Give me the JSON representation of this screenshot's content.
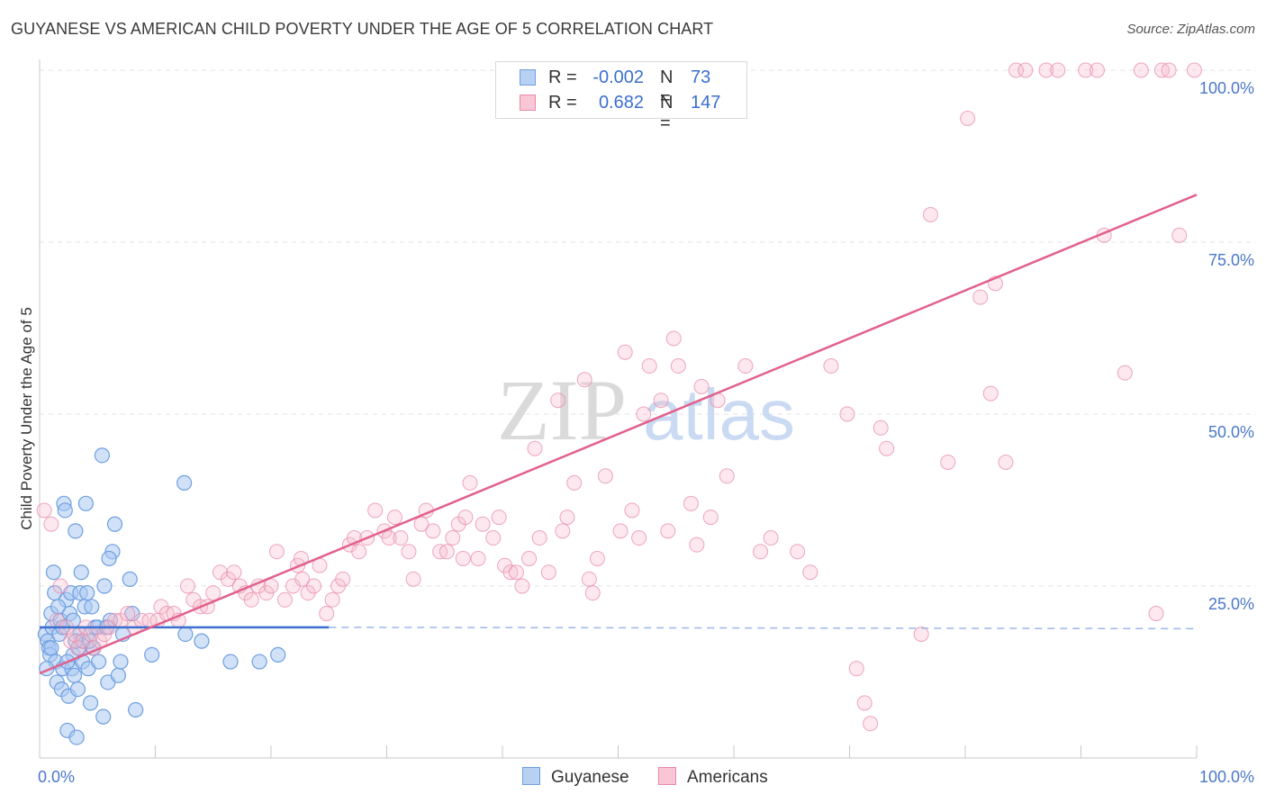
{
  "title": "GUYANESE VS AMERICAN CHILD POVERTY UNDER THE AGE OF 5 CORRELATION CHART",
  "source": "Source: ZipAtlas.com",
  "watermark": {
    "zip": "ZIP",
    "atlas": "atlas"
  },
  "colors": {
    "blue": "#6f9fe0",
    "blue_fill": "#a9c8f2",
    "blue_line": "#3d6fcf",
    "pink": "#e88aa8",
    "pink_fill": "#f6bccd",
    "pink_line": "#e2608d",
    "grid": "#e3e3e3",
    "axis_text": "#4a78c8"
  },
  "legend": {
    "rows": [
      {
        "r_label": "R =",
        "r_value": "-0.002",
        "n_label": "N =",
        "n_value": "73"
      },
      {
        "r_label": "R =",
        "r_value": "0.682",
        "n_label": "N =",
        "n_value": "147"
      }
    ]
  },
  "bottom_legend": {
    "guyanese": "Guyanese",
    "americans": "Americans"
  },
  "chart_data": {
    "type": "scatter",
    "title": "GUYANESE VS AMERICAN CHILD POVERTY UNDER THE AGE OF 5 CORRELATION CHART",
    "xlabel": "",
    "ylabel": "Child Poverty Under the Age of 5",
    "xlim": [
      0,
      100
    ],
    "ylim": [
      0,
      100
    ],
    "x_tick_labels": [
      "0.0%",
      "100.0%"
    ],
    "y_ticks": [
      25,
      50,
      75,
      100
    ],
    "y_tick_labels": [
      "25.0%",
      "50.0%",
      "75.0%",
      "100.0%"
    ],
    "series": [
      {
        "name": "Guyanese",
        "r": -0.002,
        "n": 73,
        "trend": {
          "solid": [
            [
              0,
              19.0
            ],
            [
              25,
              19.0
            ]
          ],
          "dashed": [
            [
              25,
              19.0
            ],
            [
              100,
              18.8
            ]
          ]
        },
        "points": [
          [
            0.5,
            18
          ],
          [
            0.7,
            17
          ],
          [
            0.8,
            16
          ],
          [
            0.9,
            15
          ],
          [
            1.0,
            21
          ],
          [
            1.1,
            19
          ],
          [
            1.2,
            27
          ],
          [
            1.3,
            24
          ],
          [
            1.4,
            14
          ],
          [
            1.5,
            11
          ],
          [
            1.7,
            18
          ],
          [
            1.8,
            20
          ],
          [
            1.9,
            10
          ],
          [
            2.0,
            13
          ],
          [
            2.1,
            37
          ],
          [
            2.2,
            36
          ],
          [
            2.3,
            23
          ],
          [
            2.4,
            4
          ],
          [
            2.5,
            9
          ],
          [
            2.6,
            21
          ],
          [
            2.7,
            24
          ],
          [
            2.8,
            13
          ],
          [
            2.9,
            15
          ],
          [
            3.0,
            12
          ],
          [
            3.1,
            33
          ],
          [
            3.2,
            3
          ],
          [
            3.3,
            10
          ],
          [
            3.4,
            16
          ],
          [
            3.5,
            24
          ],
          [
            3.6,
            27
          ],
          [
            3.7,
            14
          ],
          [
            3.8,
            17
          ],
          [
            3.9,
            22
          ],
          [
            4.0,
            37
          ],
          [
            4.1,
            24
          ],
          [
            4.2,
            13
          ],
          [
            4.4,
            8
          ],
          [
            4.6,
            16
          ],
          [
            4.8,
            19
          ],
          [
            5.1,
            14
          ],
          [
            5.4,
            44
          ],
          [
            5.5,
            6
          ],
          [
            5.6,
            25
          ],
          [
            5.9,
            11
          ],
          [
            6.1,
            20
          ],
          [
            6.3,
            30
          ],
          [
            6.5,
            34
          ],
          [
            6.8,
            12
          ],
          [
            7.0,
            14
          ],
          [
            7.8,
            26
          ],
          [
            8.0,
            21
          ],
          [
            8.3,
            7
          ],
          [
            9.7,
            15
          ],
          [
            12.5,
            40
          ],
          [
            12.6,
            18
          ],
          [
            14.0,
            17
          ],
          [
            16.5,
            14
          ],
          [
            19.0,
            14
          ],
          [
            20.6,
            15
          ],
          [
            0.6,
            13
          ],
          [
            1.6,
            22
          ],
          [
            2.0,
            19
          ],
          [
            2.9,
            20
          ],
          [
            3.5,
            18
          ],
          [
            4.3,
            17
          ],
          [
            5.0,
            19
          ],
          [
            6.0,
            29
          ],
          [
            7.2,
            18
          ],
          [
            1.0,
            16
          ],
          [
            2.4,
            14
          ],
          [
            3.1,
            17
          ],
          [
            4.5,
            22
          ],
          [
            5.8,
            19
          ]
        ]
      },
      {
        "name": "Americans",
        "r": 0.682,
        "n": 147,
        "trend": {
          "solid": [
            [
              0,
              12.3
            ],
            [
              100,
              81.9
            ]
          ]
        },
        "points": [
          [
            0.4,
            36
          ],
          [
            1.0,
            34
          ],
          [
            1.5,
            20
          ],
          [
            1.8,
            25
          ],
          [
            2.3,
            19
          ],
          [
            2.7,
            17
          ],
          [
            3.0,
            18
          ],
          [
            3.3,
            16
          ],
          [
            3.7,
            17
          ],
          [
            4.0,
            19
          ],
          [
            4.4,
            18
          ],
          [
            4.7,
            16
          ],
          [
            5.2,
            17
          ],
          [
            5.6,
            18
          ],
          [
            6.0,
            19
          ],
          [
            6.5,
            20
          ],
          [
            7.0,
            20
          ],
          [
            7.6,
            21
          ],
          [
            8.2,
            19
          ],
          [
            8.8,
            20
          ],
          [
            9.5,
            20
          ],
          [
            10.2,
            20
          ],
          [
            10.5,
            22
          ],
          [
            11.0,
            21
          ],
          [
            11.6,
            21
          ],
          [
            12.0,
            20
          ],
          [
            12.8,
            25
          ],
          [
            13.3,
            23
          ],
          [
            13.9,
            22
          ],
          [
            14.5,
            22
          ],
          [
            15.0,
            24
          ],
          [
            15.6,
            27
          ],
          [
            16.3,
            26
          ],
          [
            16.8,
            27
          ],
          [
            17.3,
            25
          ],
          [
            17.8,
            24
          ],
          [
            18.3,
            23
          ],
          [
            18.9,
            25
          ],
          [
            19.6,
            24
          ],
          [
            20.0,
            25
          ],
          [
            20.5,
            30
          ],
          [
            21.2,
            23
          ],
          [
            21.9,
            25
          ],
          [
            22.3,
            28
          ],
          [
            22.7,
            26
          ],
          [
            23.2,
            24
          ],
          [
            23.7,
            25
          ],
          [
            24.2,
            28
          ],
          [
            24.8,
            21
          ],
          [
            25.3,
            23
          ],
          [
            25.8,
            25
          ],
          [
            26.2,
            26
          ],
          [
            26.8,
            31
          ],
          [
            27.2,
            32
          ],
          [
            27.6,
            30
          ],
          [
            28.3,
            32
          ],
          [
            29.0,
            36
          ],
          [
            29.8,
            33
          ],
          [
            30.2,
            32
          ],
          [
            30.7,
            35
          ],
          [
            31.2,
            32
          ],
          [
            31.9,
            30
          ],
          [
            32.3,
            26
          ],
          [
            33.0,
            34
          ],
          [
            33.4,
            36
          ],
          [
            34.0,
            33
          ],
          [
            34.6,
            30
          ],
          [
            35.2,
            30
          ],
          [
            35.7,
            32
          ],
          [
            36.2,
            34
          ],
          [
            36.8,
            35
          ],
          [
            37.2,
            40
          ],
          [
            37.9,
            29
          ],
          [
            38.3,
            34
          ],
          [
            39.2,
            32
          ],
          [
            39.7,
            35
          ],
          [
            40.2,
            28
          ],
          [
            40.7,
            27
          ],
          [
            41.2,
            27
          ],
          [
            41.7,
            25
          ],
          [
            42.3,
            29
          ],
          [
            42.8,
            45
          ],
          [
            43.2,
            32
          ],
          [
            44.0,
            27
          ],
          [
            44.8,
            52
          ],
          [
            45.2,
            33
          ],
          [
            45.6,
            35
          ],
          [
            46.2,
            40
          ],
          [
            47.1,
            55
          ],
          [
            47.5,
            26
          ],
          [
            48.2,
            29
          ],
          [
            48.9,
            41
          ],
          [
            50.2,
            33
          ],
          [
            50.6,
            59
          ],
          [
            51.2,
            36
          ],
          [
            51.8,
            32
          ],
          [
            52.2,
            50
          ],
          [
            52.7,
            57
          ],
          [
            53.7,
            52
          ],
          [
            54.3,
            33
          ],
          [
            54.8,
            61
          ],
          [
            55.2,
            57
          ],
          [
            56.3,
            37
          ],
          [
            56.8,
            31
          ],
          [
            57.2,
            54
          ],
          [
            58.0,
            35
          ],
          [
            58.6,
            52
          ],
          [
            59.4,
            41
          ],
          [
            61.0,
            57
          ],
          [
            62.3,
            30
          ],
          [
            63.2,
            32
          ],
          [
            65.5,
            30
          ],
          [
            66.6,
            27
          ],
          [
            68.4,
            57
          ],
          [
            69.8,
            50
          ],
          [
            70.6,
            13
          ],
          [
            71.3,
            8
          ],
          [
            71.8,
            5
          ],
          [
            72.7,
            48
          ],
          [
            73.2,
            45
          ],
          [
            76.2,
            18
          ],
          [
            77.0,
            79
          ],
          [
            78.5,
            43
          ],
          [
            80.2,
            93
          ],
          [
            81.3,
            67
          ],
          [
            82.2,
            53
          ],
          [
            82.6,
            69
          ],
          [
            83.5,
            43
          ],
          [
            84.4,
            100
          ],
          [
            85.2,
            100
          ],
          [
            87.0,
            100
          ],
          [
            88.0,
            100
          ],
          [
            90.4,
            100
          ],
          [
            91.4,
            100
          ],
          [
            92.0,
            76
          ],
          [
            93.8,
            56
          ],
          [
            95.2,
            100
          ],
          [
            96.5,
            21
          ],
          [
            97.0,
            100
          ],
          [
            97.6,
            100
          ],
          [
            98.5,
            76
          ],
          [
            99.8,
            100
          ],
          [
            47.8,
            24
          ],
          [
            36.6,
            29
          ],
          [
            22.6,
            29
          ]
        ]
      }
    ]
  }
}
